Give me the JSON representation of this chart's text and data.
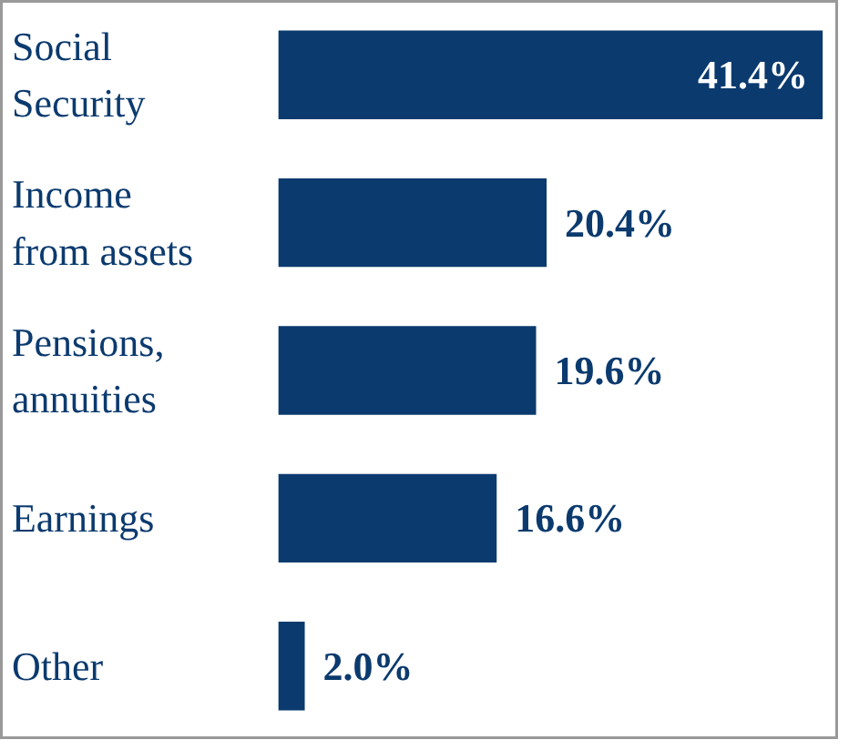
{
  "chart_data": {
    "type": "bar",
    "orientation": "horizontal",
    "categories": [
      "Social\nSecurity",
      "Income\nfrom assets",
      "Pensions,\nannuities",
      "Earnings",
      "Other"
    ],
    "values": [
      41.4,
      20.4,
      19.6,
      16.6,
      2.0
    ],
    "value_labels": [
      "41.4%",
      "20.4%",
      "19.6%",
      "16.6%",
      "2.0%"
    ],
    "color": "#0b3a6e"
  }
}
